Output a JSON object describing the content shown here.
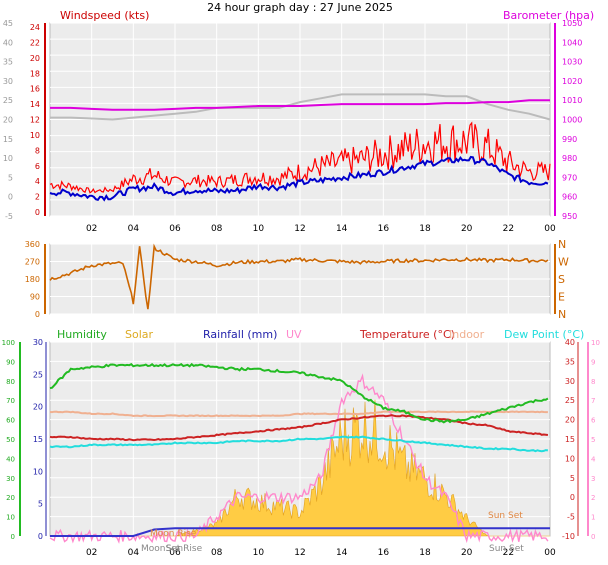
{
  "title": "24 hour graph day : 27 June 2025",
  "x_ticks": [
    "02",
    "04",
    "06",
    "08",
    "10",
    "12",
    "14",
    "16",
    "18",
    "20",
    "22",
    "00"
  ],
  "colors": {
    "wind_gust": "#ff0000",
    "wind_avg": "#0000cc",
    "baro": "#dd00dd",
    "baro_prev": "#bbbbbb",
    "direction": "#cc6600",
    "humidity": "#22bb22",
    "solar": "#ffcc44",
    "rain": "#3333cc",
    "uv": "#ff88cc",
    "temp": "#cc2222",
    "indoor": "#f0b090",
    "dew": "#22dddd",
    "panel_bg": "#ececec"
  },
  "wind_panel": {
    "title": "Windspeed (kts)",
    "baro_title": "Barometer (hpa)",
    "left_axis_outer": [
      "45",
      "40",
      "35",
      "30",
      "25",
      "20",
      "15",
      "10",
      "5",
      "0",
      "-5"
    ],
    "left_axis_inner": [
      "24",
      "22",
      "20",
      "18",
      "16",
      "14",
      "12",
      "10",
      "8",
      "6",
      "4",
      "2",
      "0"
    ],
    "right_axis": [
      "1050",
      "1040",
      "1030",
      "1020",
      "1010",
      "1000",
      "990",
      "980",
      "970",
      "960",
      "950"
    ]
  },
  "dir_panel": {
    "left_axis": [
      "360",
      "270",
      "180",
      "90",
      "0"
    ],
    "right_axis": [
      "N",
      "W",
      "S",
      "E",
      "N"
    ]
  },
  "lower_panel": {
    "legend": {
      "humidity": "Humidity",
      "solar": "Solar",
      "rainfall": "Rainfall (mm)",
      "uv": "UV",
      "temperature": "Temperature (°C)",
      "indoor": "Indoor",
      "dewpoint": "Dew Point (°C)"
    },
    "axis_humidity": [
      "100",
      "90",
      "80",
      "70",
      "60",
      "50",
      "40",
      "30",
      "20",
      "10",
      "0"
    ],
    "axis_rain": [
      "30",
      "25",
      "20",
      "15",
      "10",
      "5",
      "0"
    ],
    "axis_temp": [
      "40",
      "35",
      "30",
      "25",
      "20",
      "15",
      "10",
      "5",
      "0",
      "-5",
      "-10"
    ],
    "axis_uv": [
      "10",
      "9",
      "8",
      "7",
      "6",
      "5",
      "4",
      "3",
      "2",
      "1",
      "0"
    ],
    "annotations": {
      "moon_set": "MoonSet",
      "moon_rise": "Moon Rise",
      "sun_rise": "SunRise",
      "sun_set": "Sun Set",
      "sun_set2": "Sun Set"
    }
  },
  "chart_data": [
    {
      "type": "line",
      "title": "Windspeed (kts)",
      "x": [
        0,
        1,
        2,
        3,
        4,
        5,
        6,
        7,
        8,
        9,
        10,
        11,
        12,
        13,
        14,
        15,
        16,
        17,
        18,
        19,
        20,
        21,
        22,
        23,
        24
      ],
      "series": [
        {
          "name": "Windspeed (kts)",
          "values": [
            1.2,
            1.0,
            0.0,
            0.0,
            2.0,
            2.6,
            1.0,
            1.8,
            1.4,
            1.6,
            2.8,
            2.4,
            3.6,
            4.2,
            5.0,
            5.6,
            6.4,
            7.6,
            8.6,
            9.2,
            9.8,
            8.8,
            5.6,
            3.8,
            3.6
          ]
        },
        {
          "name": "Gust",
          "values": [
            3.5,
            3.0,
            1.5,
            2.0,
            5.0,
            6.0,
            4.0,
            4.5,
            4.2,
            4.8,
            5.5,
            5.2,
            7.0,
            8.5,
            9.5,
            10.5,
            12.0,
            13.5,
            15.0,
            15.5,
            15.5,
            14.0,
            9.5,
            7.0,
            7.0
          ]
        },
        {
          "name": "Barometer (hpa)",
          "values": [
            1006,
            1006,
            1005.5,
            1005,
            1005,
            1005,
            1005.5,
            1006,
            1006,
            1006.5,
            1007,
            1007,
            1007,
            1007.5,
            1008,
            1008,
            1008,
            1008,
            1008,
            1008.5,
            1008.5,
            1009,
            1009,
            1010,
            1010
          ]
        },
        {
          "name": "Barometer (previous)",
          "values": [
            1001,
            1001,
            1000.5,
            1000,
            1001,
            1002,
            1003,
            1004,
            1006,
            1006,
            1006,
            1006,
            1009,
            1011,
            1013,
            1013,
            1013,
            1013,
            1013,
            1012,
            1012,
            1008,
            1005,
            1003,
            1000
          ]
        }
      ],
      "ylim": [
        -5,
        45
      ]
    },
    {
      "type": "line",
      "x": [
        0,
        1,
        2,
        3,
        3.5,
        4,
        4.3,
        4.7,
        5,
        6,
        7,
        8,
        9,
        10,
        11,
        12,
        13,
        14,
        15,
        16,
        17,
        18,
        19,
        20,
        21,
        22,
        23,
        24
      ],
      "series": [
        {
          "name": "Direction",
          "values": [
            180,
            210,
            250,
            260,
            260,
            60,
            340,
            20,
            340,
            280,
            270,
            250,
            265,
            270,
            270,
            280,
            275,
            270,
            265,
            270,
            275,
            275,
            280,
            280,
            275,
            280,
            275,
            275
          ]
        }
      ],
      "ylim": [
        0,
        360
      ]
    },
    {
      "type": "line",
      "x": [
        0,
        1,
        2,
        3,
        4,
        5,
        6,
        7,
        8,
        9,
        10,
        11,
        12,
        13,
        14,
        15,
        16,
        17,
        18,
        19,
        20,
        21,
        22,
        23,
        24
      ],
      "series": [
        {
          "name": "Humidity",
          "values": [
            76,
            86,
            87,
            88,
            88,
            88,
            88,
            88,
            87,
            86,
            86,
            85,
            84,
            82,
            80,
            72,
            66,
            64,
            60,
            59,
            60,
            63,
            66,
            69,
            71
          ]
        },
        {
          "name": "Temperature (°C)",
          "values": [
            15.5,
            15.5,
            15,
            15,
            14.8,
            14.8,
            15,
            15.5,
            16,
            16.5,
            17,
            17.5,
            18,
            19,
            20,
            20.5,
            21,
            21,
            20.5,
            20,
            19,
            18.5,
            17,
            16.5,
            16
          ]
        },
        {
          "name": "Indoor",
          "values": [
            22,
            22,
            21.5,
            21.5,
            21,
            21,
            21,
            21,
            21,
            21,
            21,
            21,
            21.5,
            21.5,
            21.5,
            21.5,
            22,
            22,
            22,
            22,
            22,
            22,
            22,
            22,
            22
          ]
        },
        {
          "name": "Dew Point (°C)",
          "values": [
            13,
            13,
            13.5,
            13.5,
            13.5,
            13.5,
            14,
            14,
            14,
            14.5,
            14.5,
            14.5,
            15,
            15,
            15.5,
            15.5,
            15,
            14.5,
            14,
            13.5,
            13,
            12.5,
            12.5,
            12,
            12
          ]
        },
        {
          "name": "Solar",
          "values": [
            0,
            0,
            0,
            0,
            0,
            0,
            0,
            1,
            2,
            7,
            6,
            5,
            4,
            9,
            17,
            19,
            17,
            12,
            10,
            7,
            3,
            0,
            0,
            0,
            0
          ]
        },
        {
          "name": "UV",
          "values": [
            0,
            0,
            0,
            0,
            0,
            0,
            0,
            0,
            1,
            2,
            2,
            2,
            2,
            3,
            7,
            8,
            7,
            5,
            3,
            2,
            0,
            0,
            0,
            0,
            0
          ]
        },
        {
          "name": "Rainfall (mm)",
          "values": [
            0,
            0,
            0,
            0,
            0,
            1,
            1.2,
            1.2,
            1.2,
            1.2,
            1.2,
            1.2,
            1.2,
            1.2,
            1.2,
            1.2,
            1.2,
            1.2,
            1.2,
            1.2,
            1.2,
            1.2,
            1.2,
            1.2,
            1.2
          ]
        }
      ],
      "ylim": [
        0,
        100
      ]
    }
  ]
}
